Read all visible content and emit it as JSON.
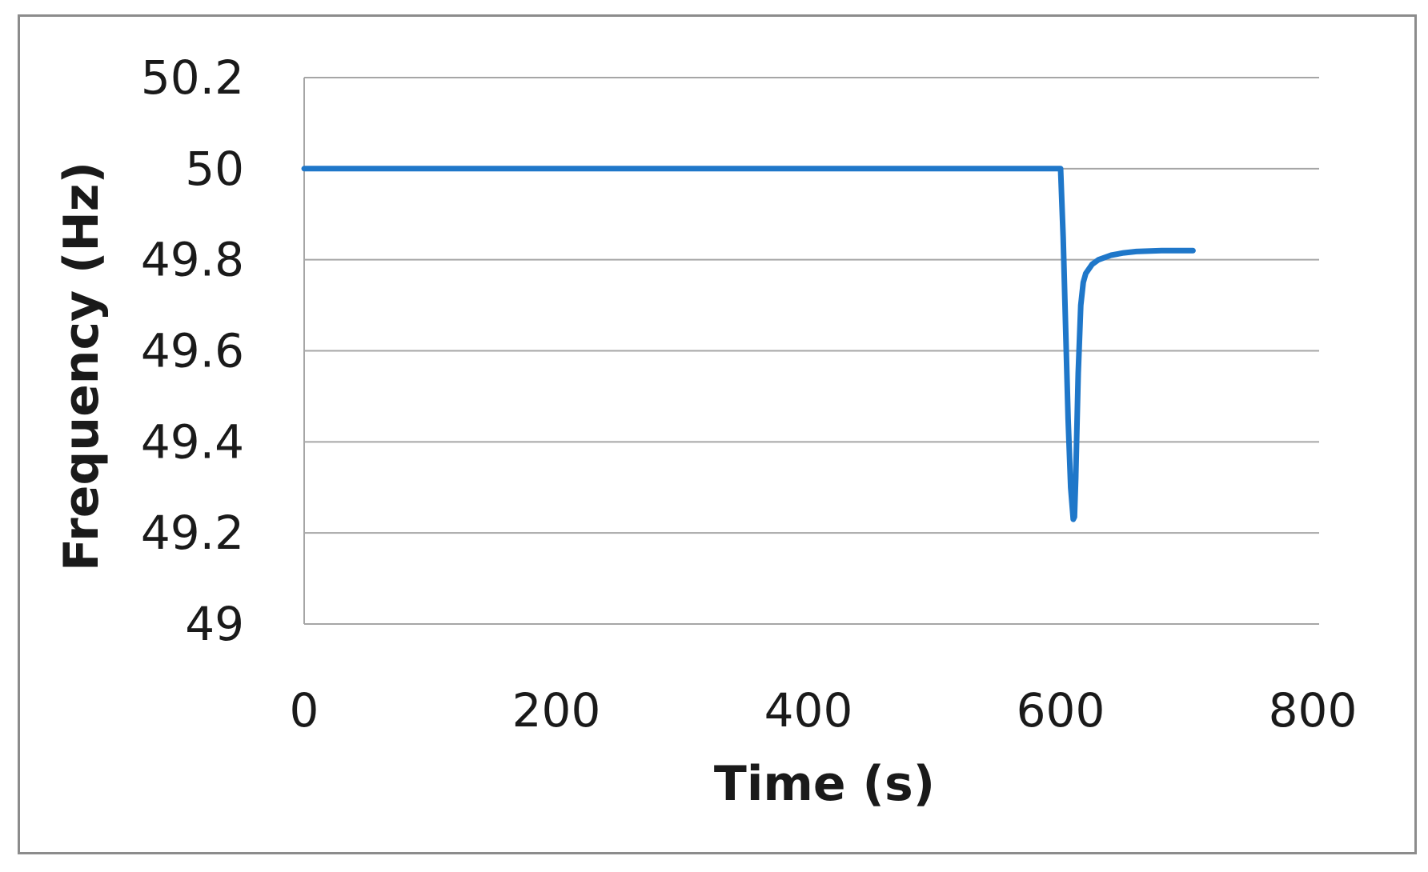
{
  "chart_data": {
    "type": "line",
    "xlabel": "Time (s)",
    "ylabel": "Frequency (Hz)",
    "xlim": [
      0,
      800
    ],
    "ylim": [
      49,
      50.2
    ],
    "xticks": [
      0,
      200,
      400,
      600,
      800
    ],
    "xtick_labels": [
      "0",
      "200",
      "400",
      "600",
      "800"
    ],
    "yticks": [
      49,
      49.2,
      49.4,
      49.6,
      49.8,
      50,
      50.2
    ],
    "ytick_labels": [
      "49",
      "49.2",
      "49.4",
      "49.6",
      "49.8",
      "50",
      "50.2"
    ],
    "grid": "horizontal",
    "line_color": "#1f77c9",
    "gridline_color": "#a6a6a6",
    "series": [
      {
        "x": [
          0,
          100,
          200,
          300,
          400,
          500,
          600,
          602,
          604,
          606,
          608,
          610,
          611,
          612,
          614,
          616,
          618,
          620,
          625,
          630,
          640,
          650,
          660,
          680,
          700,
          705
        ],
        "y": [
          50,
          50,
          50,
          50,
          50,
          50,
          50,
          49.85,
          49.65,
          49.45,
          49.3,
          49.23,
          49.235,
          49.32,
          49.55,
          49.7,
          49.75,
          49.77,
          49.79,
          49.8,
          49.81,
          49.815,
          49.818,
          49.82,
          49.82,
          49.82
        ]
      }
    ]
  }
}
